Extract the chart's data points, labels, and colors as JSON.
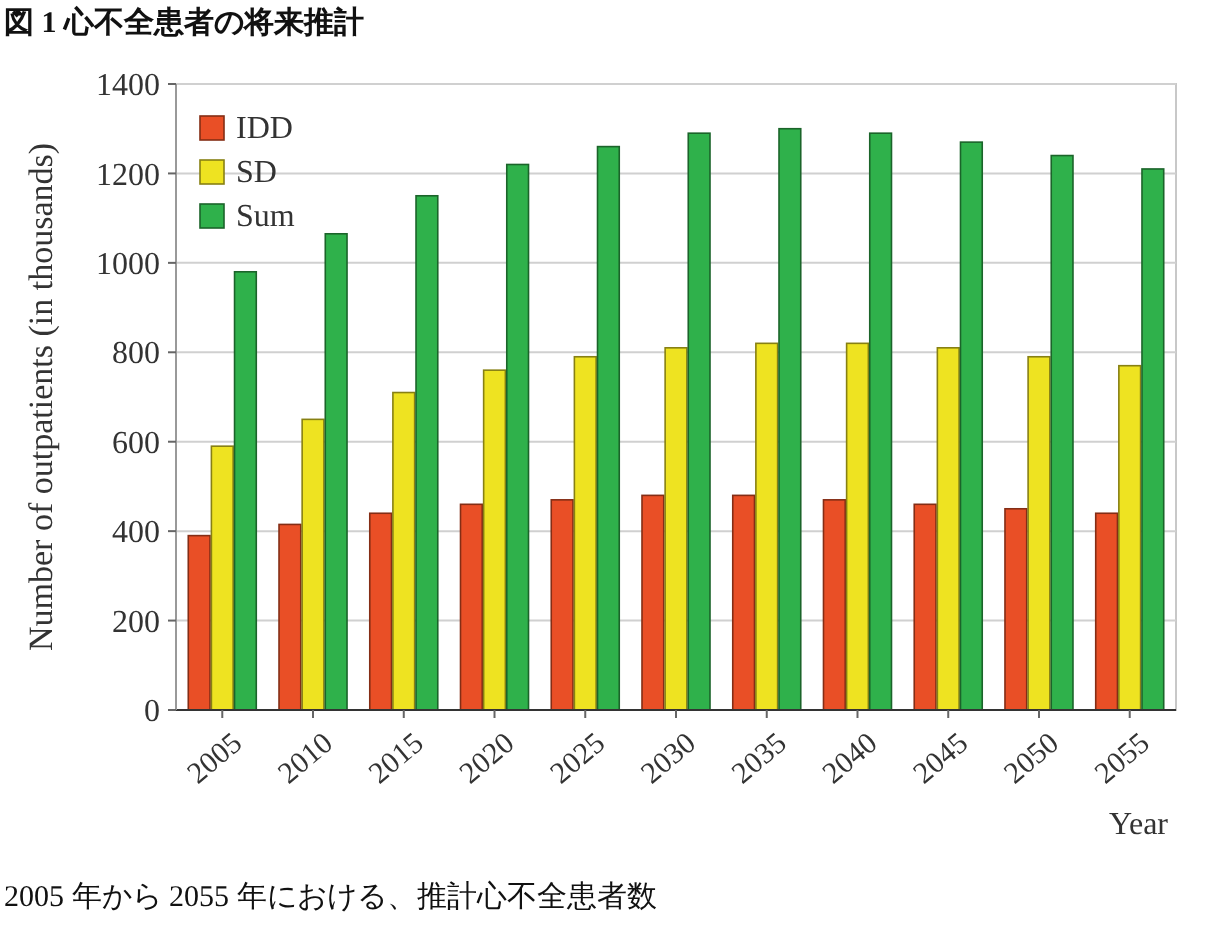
{
  "chart_data": {
    "type": "bar",
    "title": "図 1 心不全患者の将来推計",
    "categories": [
      "2005",
      "2010",
      "2015",
      "2020",
      "2025",
      "2030",
      "2035",
      "2040",
      "2045",
      "2050",
      "2055"
    ],
    "series": [
      {
        "name": "IDD",
        "color": "#e94f26",
        "values": [
          390,
          415,
          440,
          460,
          470,
          480,
          480,
          470,
          460,
          450,
          440
        ]
      },
      {
        "name": "SD",
        "color": "#eee321",
        "values": [
          590,
          650,
          710,
          760,
          790,
          810,
          820,
          820,
          810,
          790,
          770
        ]
      },
      {
        "name": "Sum",
        "color": "#2fb14b",
        "values": [
          980,
          1065,
          1150,
          1220,
          1260,
          1290,
          1300,
          1290,
          1270,
          1240,
          1210
        ]
      }
    ],
    "ylim": [
      0,
      1400
    ],
    "yticks": [
      0,
      200,
      400,
      600,
      800,
      1000,
      1200,
      1400
    ],
    "grid": "y",
    "legend": "top left",
    "xlabel": "Year",
    "ylabel": "Number of outpatients (in thousands)",
    "annotations": [
      "2005 年から 2055 年における、推計心不全患者数"
    ]
  }
}
